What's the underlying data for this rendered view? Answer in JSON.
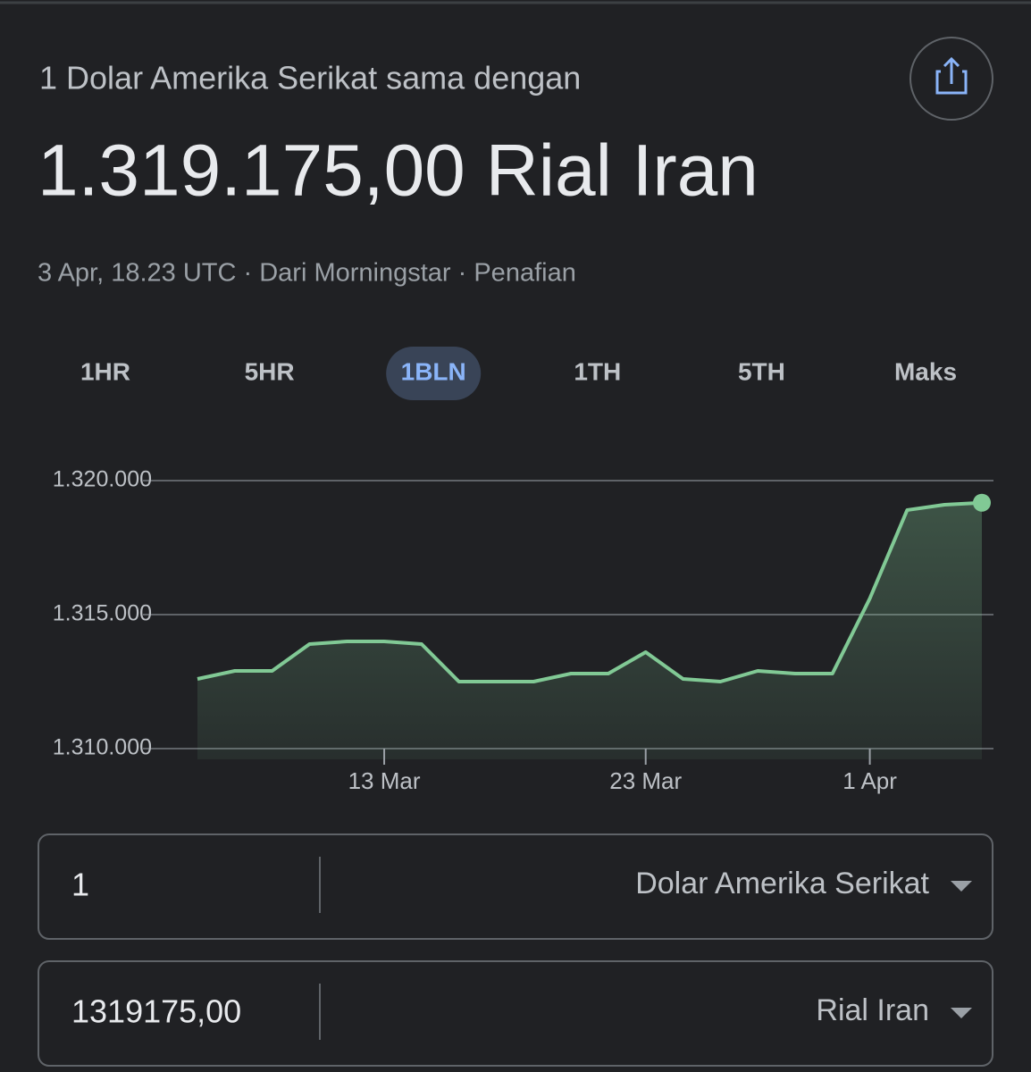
{
  "header": {
    "subtitle": "1 Dolar Amerika Serikat sama dengan",
    "value": "1.319.175,00 Rial Iran",
    "meta": "3 Apr, 18.23 UTC · Dari Morningstar · Penafian"
  },
  "tabs": {
    "items": [
      "1HR",
      "5HR",
      "1BLN",
      "1TH",
      "5TH",
      "Maks"
    ],
    "active": 2
  },
  "chart_data": {
    "type": "line",
    "color": "#81c995",
    "categories": [
      null,
      null,
      null,
      null,
      null,
      "13 Mar",
      null,
      null,
      null,
      null,
      null,
      null,
      "23 Mar",
      null,
      null,
      null,
      null,
      null,
      "1 Apr",
      null,
      null,
      null
    ],
    "values": [
      1312600,
      1312900,
      1312900,
      1313900,
      1314000,
      1314000,
      1313900,
      1312500,
      1312500,
      1312500,
      1312800,
      1312800,
      1313600,
      1312600,
      1312500,
      1312900,
      1312800,
      1312800,
      1315600,
      1318900,
      1319100,
      1319175
    ],
    "ylim": [
      1310000,
      1320000
    ],
    "yticks": [
      {
        "value": 1320000,
        "label": "1.320.000"
      },
      {
        "value": 1315000,
        "label": "1.315.000"
      },
      {
        "value": 1310000,
        "label": "1.310.000"
      }
    ],
    "grid": true
  },
  "converter": {
    "rows": [
      {
        "amount": "1",
        "currency": "Dolar Amerika Serikat"
      },
      {
        "amount": "1319175,00",
        "currency": "Rial Iran"
      }
    ]
  }
}
